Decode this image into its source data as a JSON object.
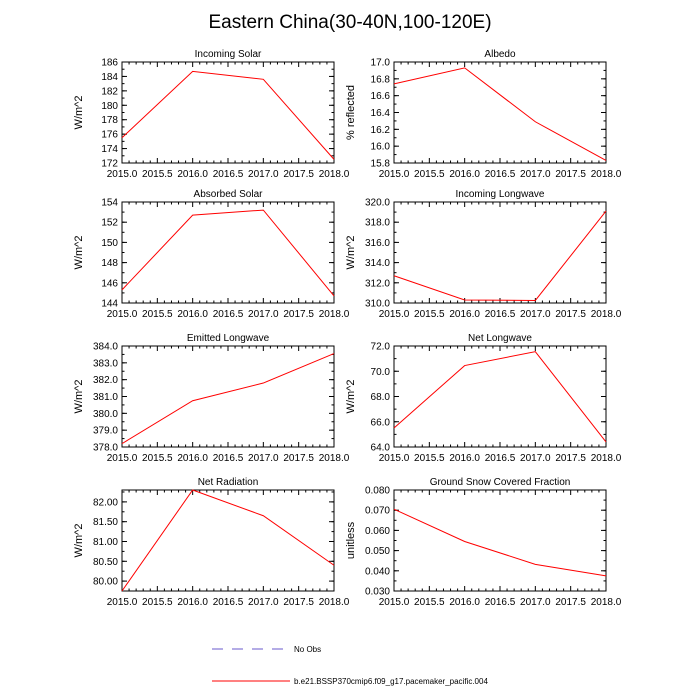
{
  "title": "Eastern China(30-40N,100-120E)",
  "colors": {
    "model": "#ff0000",
    "obs": "#6a5acd",
    "axis": "#000000"
  },
  "legend": [
    {
      "label": "No Obs",
      "style": "dashed",
      "color": "#6a5acd"
    },
    {
      "label": "b.e21.BSSP370cmip6.f09_g17.pacemaker_pacific.004",
      "style": "solid",
      "color": "#ff0000"
    }
  ],
  "chart_data": [
    {
      "type": "line",
      "title": "Incoming Solar",
      "ylabel": "W/m^2",
      "x": [
        2015.0,
        2016.0,
        2017.0,
        2018.0
      ],
      "xticks": [
        2015.0,
        2015.5,
        2016.0,
        2016.5,
        2017.0,
        2017.5,
        2018.0
      ],
      "xtick_labels": [
        "2015.0",
        "2015.5",
        "2016.0",
        "2016.5",
        "2017.0",
        "2017.5",
        "2018.0"
      ],
      "ylim": [
        172,
        186
      ],
      "yticks": [
        172,
        174,
        176,
        178,
        180,
        182,
        184,
        186
      ],
      "ytick_labels": [
        "172",
        "174",
        "176",
        "178",
        "180",
        "182",
        "184",
        "186"
      ],
      "series": [
        {
          "name": "b.e21.BSSP370cmip6.f09_g17.pacemaker_pacific.004",
          "values": [
            175.5,
            184.7,
            183.6,
            172.5
          ]
        }
      ]
    },
    {
      "type": "line",
      "title": "Albedo",
      "ylabel": "% reflected",
      "x": [
        2015.0,
        2016.0,
        2017.0,
        2018.0
      ],
      "xticks": [
        2015.0,
        2015.5,
        2016.0,
        2016.5,
        2017.0,
        2017.5,
        2018.0
      ],
      "xtick_labels": [
        "2015.0",
        "2015.5",
        "2016.0",
        "2016.5",
        "2017.0",
        "2017.5",
        "2018.0"
      ],
      "ylim": [
        15.8,
        17.0
      ],
      "yticks": [
        15.8,
        16.0,
        16.2,
        16.4,
        16.6,
        16.8,
        17.0
      ],
      "ytick_labels": [
        "15.8",
        "16.0",
        "16.2",
        "16.4",
        "16.6",
        "16.8",
        "17.0"
      ],
      "series": [
        {
          "name": "b.e21.BSSP370cmip6.f09_g17.pacemaker_pacific.004",
          "values": [
            16.74,
            16.93,
            16.29,
            15.83
          ]
        }
      ]
    },
    {
      "type": "line",
      "title": "Absorbed Solar",
      "ylabel": "W/m^2",
      "x": [
        2015.0,
        2016.0,
        2017.0,
        2018.0
      ],
      "xticks": [
        2015.0,
        2015.5,
        2016.0,
        2016.5,
        2017.0,
        2017.5,
        2018.0
      ],
      "xtick_labels": [
        "2015.0",
        "2015.5",
        "2016.0",
        "2016.5",
        "2017.0",
        "2017.5",
        "2018.0"
      ],
      "ylim": [
        144,
        154
      ],
      "yticks": [
        144,
        146,
        148,
        150,
        152,
        154
      ],
      "ytick_labels": [
        "144",
        "146",
        "148",
        "150",
        "152",
        "154"
      ],
      "series": [
        {
          "name": "b.e21.BSSP370cmip6.f09_g17.pacemaker_pacific.004",
          "values": [
            145.3,
            152.7,
            153.2,
            144.7
          ]
        }
      ]
    },
    {
      "type": "line",
      "title": "Incoming Longwave",
      "ylabel": "W/m^2",
      "x": [
        2015.0,
        2016.0,
        2017.0,
        2018.0
      ],
      "xticks": [
        2015.0,
        2015.5,
        2016.0,
        2016.5,
        2017.0,
        2017.5,
        2018.0
      ],
      "xtick_labels": [
        "2015.0",
        "2015.5",
        "2016.0",
        "2016.5",
        "2017.0",
        "2017.5",
        "2018.0"
      ],
      "ylim": [
        310,
        320
      ],
      "yticks": [
        310,
        312,
        314,
        316,
        318,
        320
      ],
      "ytick_labels": [
        "310.0",
        "312.0",
        "314.0",
        "316.0",
        "318.0",
        "320.0"
      ],
      "series": [
        {
          "name": "b.e21.BSSP370cmip6.f09_g17.pacemaker_pacific.004",
          "values": [
            312.7,
            310.3,
            310.25,
            319.1
          ]
        }
      ]
    },
    {
      "type": "line",
      "title": "Emitted Longwave",
      "ylabel": "W/m^2",
      "x": [
        2015.0,
        2016.0,
        2017.0,
        2018.0
      ],
      "xticks": [
        2015.0,
        2015.5,
        2016.0,
        2016.5,
        2017.0,
        2017.5,
        2018.0
      ],
      "xtick_labels": [
        "2015.0",
        "2015.5",
        "2016.0",
        "2016.5",
        "2017.0",
        "2017.5",
        "2018.0"
      ],
      "ylim": [
        378,
        384
      ],
      "yticks": [
        378,
        379,
        380,
        381,
        382,
        383,
        384
      ],
      "ytick_labels": [
        "378.0",
        "379.0",
        "380.0",
        "381.0",
        "382.0",
        "383.0",
        "384.0"
      ],
      "series": [
        {
          "name": "b.e21.BSSP370cmip6.f09_g17.pacemaker_pacific.004",
          "values": [
            378.2,
            380.75,
            381.8,
            383.55
          ]
        }
      ]
    },
    {
      "type": "line",
      "title": "Net Longwave",
      "ylabel": "W/m^2",
      "x": [
        2015.0,
        2016.0,
        2017.0,
        2018.0
      ],
      "xticks": [
        2015.0,
        2015.5,
        2016.0,
        2016.5,
        2017.0,
        2017.5,
        2018.0
      ],
      "xtick_labels": [
        "2015.0",
        "2015.5",
        "2016.0",
        "2016.5",
        "2017.0",
        "2017.5",
        "2018.0"
      ],
      "ylim": [
        64,
        72
      ],
      "yticks": [
        64,
        66,
        68,
        70,
        72
      ],
      "ytick_labels": [
        "64.0",
        "66.0",
        "68.0",
        "70.0",
        "72.0"
      ],
      "series": [
        {
          "name": "b.e21.BSSP370cmip6.f09_g17.pacemaker_pacific.004",
          "values": [
            65.5,
            70.45,
            71.55,
            64.4
          ]
        }
      ]
    },
    {
      "type": "line",
      "title": "Net Radiation",
      "ylabel": "W/m^2",
      "x": [
        2015.0,
        2016.0,
        2017.0,
        2018.0
      ],
      "xticks": [
        2015.0,
        2015.5,
        2016.0,
        2016.5,
        2017.0,
        2017.5,
        2018.0
      ],
      "xtick_labels": [
        "2015.0",
        "2015.5",
        "2016.0",
        "2016.5",
        "2017.0",
        "2017.5",
        "2018.0"
      ],
      "ylim": [
        79.75,
        82.3
      ],
      "yticks": [
        80.0,
        80.5,
        81.0,
        81.5,
        82.0
      ],
      "ytick_labels": [
        "80.00",
        "80.50",
        "81.00",
        "81.50",
        "82.00"
      ],
      "series": [
        {
          "name": "b.e21.BSSP370cmip6.f09_g17.pacemaker_pacific.004",
          "values": [
            79.75,
            82.3,
            81.65,
            80.4
          ]
        }
      ]
    },
    {
      "type": "line",
      "title": "Ground Snow Covered Fraction",
      "ylabel": "unitless",
      "x": [
        2015.0,
        2016.0,
        2017.0,
        2018.0
      ],
      "xticks": [
        2015.0,
        2015.5,
        2016.0,
        2016.5,
        2017.0,
        2017.5,
        2018.0
      ],
      "xtick_labels": [
        "2015.0",
        "2015.5",
        "2016.0",
        "2016.5",
        "2017.0",
        "2017.5",
        "2018.0"
      ],
      "ylim": [
        0.03,
        0.08
      ],
      "yticks": [
        0.03,
        0.04,
        0.05,
        0.06,
        0.07,
        0.08
      ],
      "ytick_labels": [
        "0.030",
        "0.040",
        "0.050",
        "0.060",
        "0.070",
        "0.080"
      ],
      "series": [
        {
          "name": "b.e21.BSSP370cmip6.f09_g17.pacemaker_pacific.004",
          "values": [
            0.0705,
            0.0545,
            0.0432,
            0.0375
          ]
        }
      ]
    }
  ]
}
